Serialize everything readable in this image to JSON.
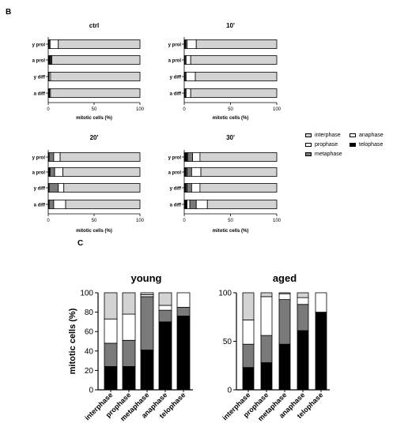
{
  "panel_labels": {
    "b": "B",
    "c": "C"
  },
  "colors": {
    "interphase": "#d3d3d3",
    "prophase": "#ffffff",
    "metaphase": "#7a7a7a",
    "anaphase": "#ffffff",
    "telophase": "#000000"
  },
  "legend": {
    "interphase": "interphase",
    "anaphase": "anaphase",
    "prophase": "prophase",
    "telophase": "telophase",
    "metaphase": "metaphase"
  },
  "chart_data": [
    {
      "type": "bar",
      "orientation": "horizontal",
      "stacked": true,
      "title": "ctrl",
      "xlabel": "mitotic cells (%)",
      "xlim": [
        0,
        100
      ],
      "xticks": [
        "0",
        "50",
        "100"
      ],
      "categories": [
        "y prol",
        "a prol",
        "y diff",
        "a diff"
      ],
      "series": [
        {
          "name": "telophase",
          "values": [
            1,
            2,
            0.5,
            1
          ]
        },
        {
          "name": "anaphase",
          "values": [
            0,
            0,
            0,
            0
          ]
        },
        {
          "name": "metaphase",
          "values": [
            1,
            1,
            0.5,
            0.5
          ]
        },
        {
          "name": "prophase",
          "values": [
            9,
            1,
            1.5,
            1
          ]
        },
        {
          "name": "interphase",
          "values": [
            89,
            96,
            97.5,
            97.5
          ]
        }
      ]
    },
    {
      "type": "bar",
      "orientation": "horizontal",
      "stacked": true,
      "title": "10'",
      "xlabel": "mitotic cells (%)",
      "xlim": [
        0,
        100
      ],
      "xticks": [
        "0",
        "50",
        "100"
      ],
      "categories": [
        "y prol",
        "a prol",
        "y diff",
        "a diff"
      ],
      "series": [
        {
          "name": "telophase",
          "values": [
            1.5,
            1,
            1,
            1
          ]
        },
        {
          "name": "anaphase",
          "values": [
            0,
            0,
            0,
            0
          ]
        },
        {
          "name": "metaphase",
          "values": [
            1.5,
            1,
            1,
            1
          ]
        },
        {
          "name": "prophase",
          "values": [
            10,
            5,
            10,
            5
          ]
        },
        {
          "name": "interphase",
          "values": [
            87,
            93,
            88,
            93
          ]
        }
      ]
    },
    {
      "type": "bar",
      "orientation": "horizontal",
      "stacked": true,
      "title": "20'",
      "xlabel": "mitotic cells (%)",
      "xlim": [
        0,
        100
      ],
      "xticks": [
        "0",
        "50",
        "100"
      ],
      "categories": [
        "y prol",
        "a prol",
        "y diff",
        "a diff"
      ],
      "series": [
        {
          "name": "telophase",
          "values": [
            1,
            2,
            1,
            1
          ]
        },
        {
          "name": "anaphase",
          "values": [
            0,
            0,
            0,
            0
          ]
        },
        {
          "name": "metaphase",
          "values": [
            5,
            5,
            10,
            5
          ]
        },
        {
          "name": "prophase",
          "values": [
            7,
            9,
            6,
            13
          ]
        },
        {
          "name": "interphase",
          "values": [
            87,
            84,
            83,
            81
          ]
        }
      ]
    },
    {
      "type": "bar",
      "orientation": "horizontal",
      "stacked": true,
      "title": "30'",
      "xlabel": "mitotic cells (%)",
      "xlim": [
        0,
        100
      ],
      "xticks": [
        "0",
        "50",
        "100"
      ],
      "categories": [
        "y prol",
        "a prol",
        "y diff",
        "a diff"
      ],
      "series": [
        {
          "name": "telophase",
          "values": [
            3,
            2,
            2,
            3
          ]
        },
        {
          "name": "anaphase",
          "values": [
            1,
            1,
            1,
            3
          ]
        },
        {
          "name": "metaphase",
          "values": [
            5,
            5,
            5,
            7
          ]
        },
        {
          "name": "prophase",
          "values": [
            8,
            10,
            9,
            12
          ]
        },
        {
          "name": "interphase",
          "values": [
            83,
            82,
            83,
            75
          ]
        }
      ]
    },
    {
      "type": "bar",
      "stacked": true,
      "title": "young",
      "ylabel": "mitotic cells (%)",
      "ylim": [
        0,
        100
      ],
      "yticks": [
        "0",
        "20",
        "40",
        "60",
        "80",
        "100"
      ],
      "categories": [
        "interphase",
        "prophase",
        "metaphase",
        "anaphase",
        "telophase"
      ],
      "series": [
        {
          "name": "telophase",
          "values": [
            24,
            24,
            41,
            70,
            76
          ]
        },
        {
          "name": "metaphase",
          "values": [
            24,
            27,
            55,
            12,
            9
          ]
        },
        {
          "name": "prophase",
          "values": [
            25,
            27,
            2,
            5,
            15
          ]
        },
        {
          "name": "interphase",
          "values": [
            27,
            22,
            2,
            13,
            0
          ]
        }
      ]
    },
    {
      "type": "bar",
      "stacked": true,
      "title": "aged",
      "ylim": [
        0,
        100
      ],
      "yticks": [
        "0",
        "50",
        "100"
      ],
      "categories": [
        "interphase",
        "prophase",
        "metaphase",
        "anaphase",
        "telophase"
      ],
      "series": [
        {
          "name": "telophase",
          "values": [
            23,
            28,
            47,
            61,
            80
          ]
        },
        {
          "name": "metaphase",
          "values": [
            24,
            28,
            46,
            27,
            0
          ]
        },
        {
          "name": "prophase",
          "values": [
            25,
            40,
            6,
            7,
            20
          ]
        },
        {
          "name": "interphase",
          "values": [
            28,
            4,
            1,
            5,
            0
          ]
        }
      ]
    }
  ]
}
